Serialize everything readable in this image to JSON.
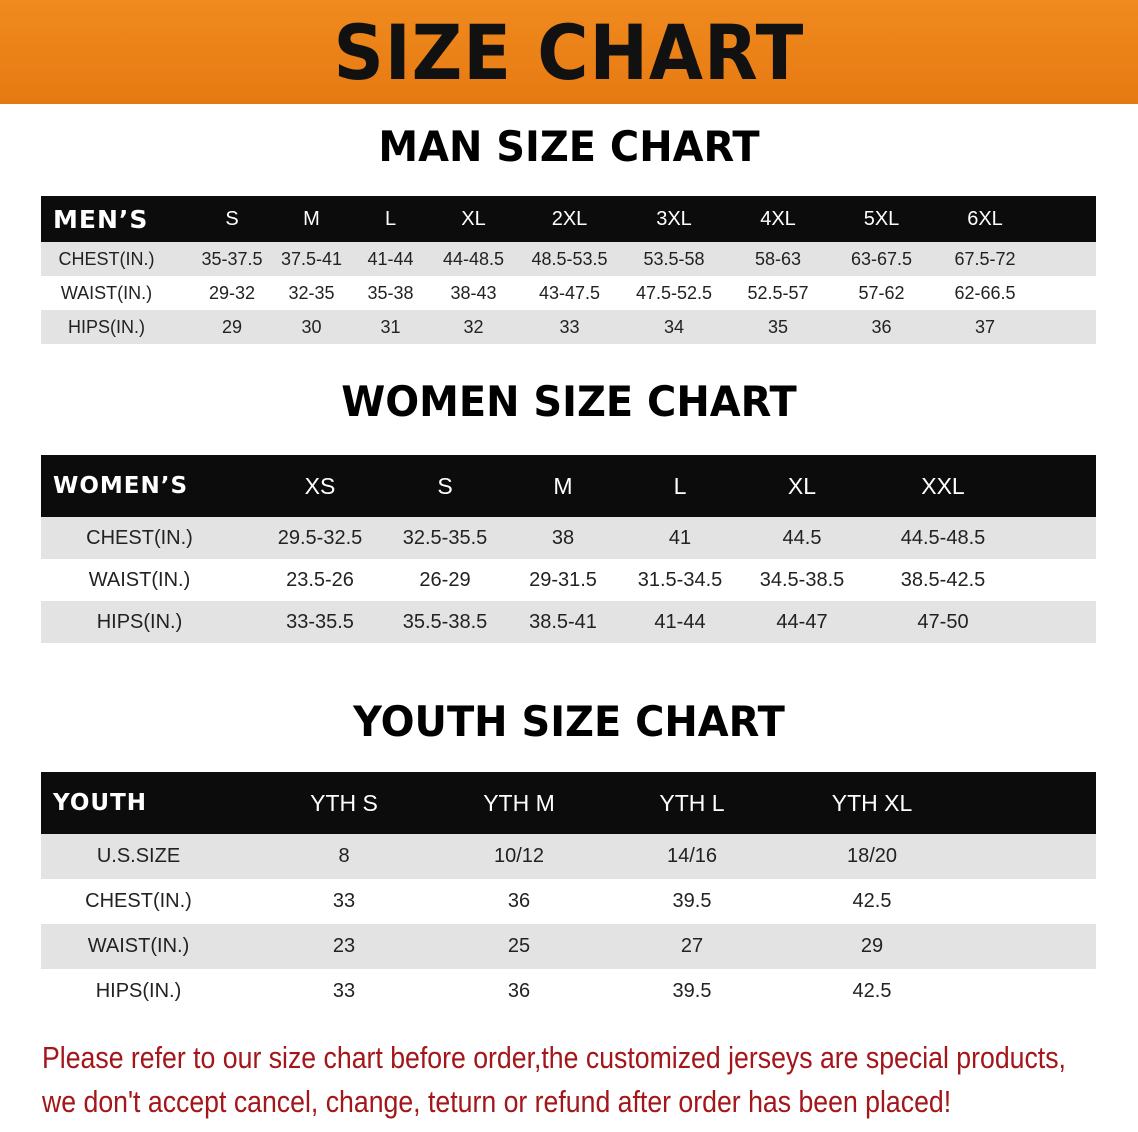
{
  "banner": {
    "title": "SIZE CHART",
    "color": "#ec8119"
  },
  "men": {
    "title": "MAN SIZE CHART",
    "header": [
      "MEN’S",
      "S",
      "M",
      "L",
      "XL",
      "2XL",
      "3XL",
      "4XL",
      "5XL",
      "6XL"
    ],
    "rows": [
      [
        "CHEST(IN.)",
        "35-37.5",
        "37.5-41",
        "41-44",
        "44-48.5",
        "48.5-53.5",
        "53.5-58",
        "58-63",
        "63-67.5",
        "67.5-72"
      ],
      [
        "WAIST(IN.)",
        "29-32",
        "32-35",
        "35-38",
        "38-43",
        "43-47.5",
        "47.5-52.5",
        "52.5-57",
        "57-62",
        "62-66.5"
      ],
      [
        "HIPS(IN.)",
        "29",
        "30",
        "31",
        "32",
        "33",
        "34",
        "35",
        "36",
        "37"
      ]
    ]
  },
  "women": {
    "title": "WOMEN SIZE CHART",
    "header": [
      "WOMEN’S",
      "XS",
      "S",
      "M",
      "L",
      "XL",
      "XXL"
    ],
    "rows": [
      [
        "CHEST(IN.)",
        "29.5-32.5",
        "32.5-35.5",
        "38",
        "41",
        "44.5",
        "44.5-48.5"
      ],
      [
        "WAIST(IN.)",
        "23.5-26",
        "26-29",
        "29-31.5",
        "31.5-34.5",
        "34.5-38.5",
        "38.5-42.5"
      ],
      [
        "HIPS(IN.)",
        "33-35.5",
        "35.5-38.5",
        "38.5-41",
        "41-44",
        "44-47",
        "47-50"
      ]
    ]
  },
  "youth": {
    "title": "YOUTH SIZE CHART",
    "header": [
      "YOUTH",
      "YTH S",
      "YTH M",
      "YTH L",
      "YTH XL"
    ],
    "rows": [
      [
        "U.S.SIZE",
        "8",
        "10/12",
        "14/16",
        "18/20"
      ],
      [
        "CHEST(IN.)",
        "33",
        "36",
        "39.5",
        "42.5"
      ],
      [
        "WAIST(IN.)",
        "23",
        "25",
        "27",
        "29"
      ],
      [
        "HIPS(IN.)",
        "33",
        "36",
        "39.5",
        "42.5"
      ]
    ]
  },
  "note": {
    "line1": "Please refer to our size chart before order,the customized jerseys are special products,",
    "line2": "we don't accept cancel, change, teturn or refund after order has been placed!",
    "color": "#a3161a"
  }
}
